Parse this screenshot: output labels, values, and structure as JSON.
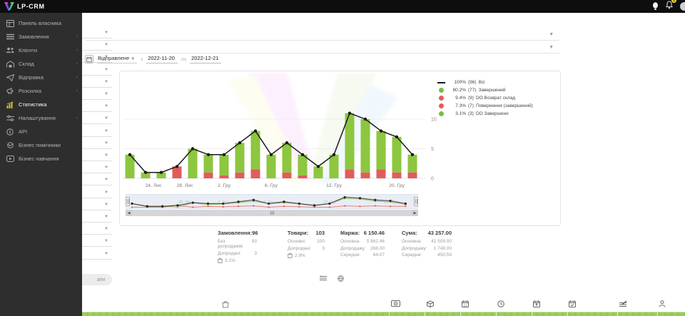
{
  "topbar": {
    "brand": "LP-CRM",
    "notification_badge": "1"
  },
  "sidebar": {
    "items": [
      {
        "label": "Панель власника",
        "icon": "dashboard-icon",
        "arrow": false,
        "active": false
      },
      {
        "label": "Замовлення",
        "icon": "orders-icon",
        "arrow": true,
        "active": false
      },
      {
        "label": "Клієнти",
        "icon": "clients-icon",
        "arrow": true,
        "active": false
      },
      {
        "label": "Склад",
        "icon": "warehouse-icon",
        "arrow": true,
        "active": false
      },
      {
        "label": "Відправка",
        "icon": "shipping-icon",
        "arrow": true,
        "active": false
      },
      {
        "label": "Розсилка",
        "icon": "broadcast-icon",
        "arrow": true,
        "active": false
      },
      {
        "label": "Статистика",
        "icon": "statistics-icon",
        "arrow": false,
        "active": true
      },
      {
        "label": "Налаштування",
        "icon": "settings-icon",
        "arrow": true,
        "active": false
      },
      {
        "label": "API",
        "icon": "api-icon",
        "arrow": false,
        "active": false
      },
      {
        "label": "Бізнес помічники",
        "icon": "helpers-icon",
        "arrow": false,
        "active": false
      },
      {
        "label": "Бізнес навчання",
        "icon": "training-icon",
        "arrow": false,
        "active": false
      }
    ]
  },
  "date_filter": {
    "status_select": "Відправлене",
    "from_label": "з",
    "from_value": "2022-11-20",
    "to_label": "по",
    "to_value": "2022-12-21"
  },
  "filters": {
    "apply_button_text": "ати"
  },
  "chart_data": {
    "type": "bar",
    "title": "",
    "xlabel": "",
    "ylabel": "",
    "ylim": [
      0,
      12
    ],
    "yticks": [
      0,
      5,
      10
    ],
    "grid": true,
    "legend_position": "top-right",
    "x_tick_labels": [
      {
        "index": 1.5,
        "label": "24. Лис"
      },
      {
        "index": 3.5,
        "label": "28. Лис"
      },
      {
        "index": 6,
        "label": "2. Гру"
      },
      {
        "index": 9,
        "label": "6. Гру"
      },
      {
        "index": 13,
        "label": "12. Гру"
      },
      {
        "index": 17,
        "label": "20. Гру"
      }
    ],
    "series": [
      {
        "name": "Всі",
        "type": "line",
        "color": "#1a1a1a",
        "values": [
          4,
          1,
          1,
          2,
          5,
          4,
          4,
          6,
          8,
          4,
          6,
          4,
          2,
          4,
          11,
          10,
          8,
          7,
          4
        ]
      },
      {
        "name": "Завершений",
        "type": "bar-stack",
        "color": "#8dc63f",
        "values": [
          4,
          1,
          1,
          0,
          5,
          3,
          3.5,
          5,
          6.5,
          4,
          5,
          3.5,
          2,
          4,
          9.5,
          9,
          6.5,
          6,
          3
        ]
      },
      {
        "name": "Повернення",
        "type": "bar-stack",
        "color": "#e25c5c",
        "values": [
          0,
          0,
          0,
          2,
          0,
          1,
          0.5,
          1,
          1.5,
          0,
          1,
          0.5,
          0,
          0,
          1.5,
          1,
          1.5,
          1,
          1
        ]
      }
    ],
    "legend": [
      {
        "swatch": "line",
        "color": "#1a1a1a",
        "pct": "100%",
        "count": "(96)",
        "label": "Всі"
      },
      {
        "swatch": "dot",
        "color": "#77bf3f",
        "pct": "80.2%",
        "count": "(77)",
        "label": "Завершений"
      },
      {
        "swatch": "dot",
        "color": "#e25c5c",
        "pct": "9.4%",
        "count": "(9)",
        "label": "DO Возврат склад"
      },
      {
        "swatch": "dot",
        "color": "#e25c5c",
        "pct": "7.3%",
        "count": "(7)",
        "label": "Повернення (завершений)"
      },
      {
        "swatch": "dot",
        "color": "#77bf3f",
        "pct": "3.1%",
        "count": "(3)",
        "label": "DO Завершено"
      }
    ]
  },
  "summary": {
    "columns": [
      {
        "title": "Замовлення:",
        "value": "96",
        "rows": [
          {
            "label": "Без допродажів:",
            "value": "93"
          },
          {
            "label": "Допродані:",
            "value": "3"
          }
        ],
        "badge": "3.1%"
      },
      {
        "title": "Товари:",
        "value": "103",
        "rows": [
          {
            "label": "Основні:",
            "value": "100"
          },
          {
            "label": "Допродані:",
            "value": "3"
          }
        ],
        "badge": "2.9%"
      },
      {
        "title": "Маржа:",
        "value": "6 150.46",
        "rows": [
          {
            "label": "Основна:",
            "value": "5 862.46"
          },
          {
            "label": "Допродажу:",
            "value": "288.00"
          },
          {
            "label": "Середня:",
            "value": "64.07"
          }
        ]
      },
      {
        "title": "Сума:",
        "value": "43 257.00",
        "rows": [
          {
            "label": "Основна:",
            "value": "41 509.00"
          },
          {
            "label": "Допродажу:",
            "value": "1 748.00"
          },
          {
            "label": "Середня:",
            "value": "450.59"
          }
        ]
      }
    ]
  },
  "colors": {
    "accent_green": "#8dc63f",
    "accent_red": "#e25c5c",
    "line_black": "#1a1a1a",
    "row_green": "#9ccd5c",
    "sidebar_bg": "#2e2e2e",
    "topbar_bg": "#0e0e0e",
    "stat_icon_yellow": "#d2c22e"
  }
}
